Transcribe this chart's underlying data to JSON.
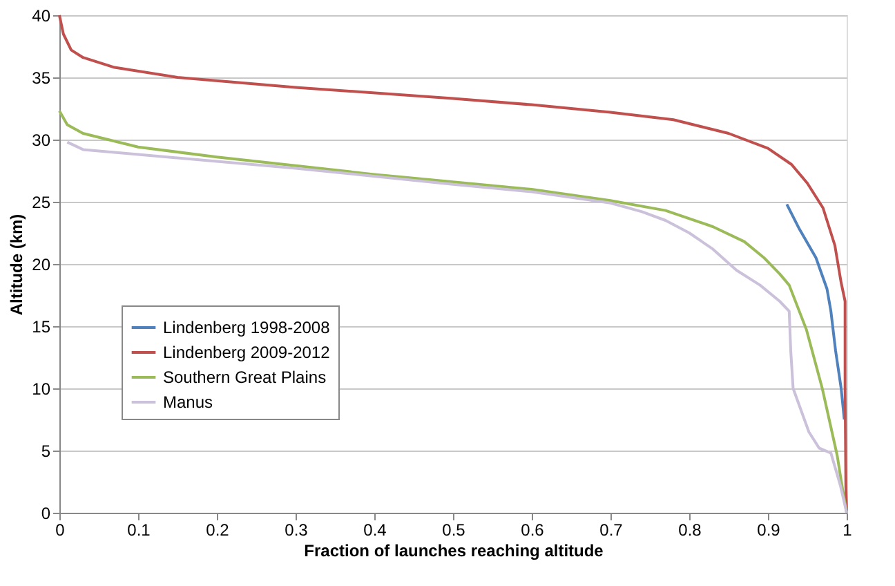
{
  "chart_data": {
    "type": "line",
    "xlabel": "Fraction of launches reaching altitude",
    "ylabel": "Altitude (km)",
    "xlim": [
      0,
      1
    ],
    "xticks": [
      0,
      0.1,
      0.2,
      0.3,
      0.4,
      0.5,
      0.6,
      0.7,
      0.8,
      0.9,
      1
    ],
    "ylim": [
      0,
      40
    ],
    "yticks": [
      0,
      5,
      10,
      15,
      20,
      25,
      30,
      35,
      40
    ],
    "grid": "y",
    "legend": "left",
    "marker": "none",
    "line_style": "solid",
    "series": [
      {
        "name": "Lindenberg 1998-2008",
        "color": "#4f81bd",
        "x": [
          0.924,
          0.94,
          0.961,
          0.975,
          0.98,
          0.986,
          0.993,
          0.997
        ],
        "values": [
          24.8,
          22.8,
          20.5,
          18.0,
          16.2,
          13.0,
          10.0,
          7.5
        ]
      },
      {
        "name": "Lindenberg 2009-2012",
        "color": "#c0504d",
        "x": [
          0,
          0.005,
          0.015,
          0.03,
          0.07,
          0.15,
          0.3,
          0.5,
          0.6,
          0.7,
          0.78,
          0.85,
          0.9,
          0.93,
          0.95,
          0.97,
          0.985,
          0.993,
          0.998,
          0.998,
          0.999,
          1
        ],
        "values": [
          40,
          38.5,
          37.2,
          36.6,
          35.8,
          35.0,
          34.2,
          33.3,
          32.8,
          32.2,
          31.6,
          30.5,
          29.3,
          28.0,
          26.5,
          24.5,
          21.5,
          18.5,
          17.0,
          10.0,
          2.0,
          0
        ]
      },
      {
        "name": "Southern Great Plains",
        "color": "#9bbb59",
        "x": [
          0,
          0.01,
          0.03,
          0.1,
          0.2,
          0.3,
          0.4,
          0.5,
          0.6,
          0.7,
          0.77,
          0.83,
          0.87,
          0.895,
          0.915,
          0.927,
          0.949,
          0.969,
          0.988,
          0.995,
          1
        ],
        "values": [
          32.3,
          31.2,
          30.5,
          29.4,
          28.6,
          27.9,
          27.2,
          26.6,
          26.0,
          25.1,
          24.3,
          23.0,
          21.8,
          20.5,
          19.2,
          18.3,
          14.7,
          10.0,
          4.6,
          1.8,
          0
        ]
      },
      {
        "name": "Manus",
        "color": "#ccc1da",
        "x": [
          0.01,
          0.03,
          0.1,
          0.3,
          0.5,
          0.6,
          0.7,
          0.74,
          0.77,
          0.8,
          0.83,
          0.86,
          0.89,
          0.915,
          0.927,
          0.929,
          0.932,
          0.952,
          0.965,
          0.98,
          0.992,
          1
        ],
        "values": [
          29.8,
          29.2,
          28.8,
          27.7,
          26.4,
          25.8,
          24.9,
          24.2,
          23.5,
          22.5,
          21.2,
          19.5,
          18.3,
          17.0,
          16.2,
          13.0,
          10.0,
          6.5,
          5.2,
          4.8,
          2.2,
          0
        ]
      }
    ]
  }
}
